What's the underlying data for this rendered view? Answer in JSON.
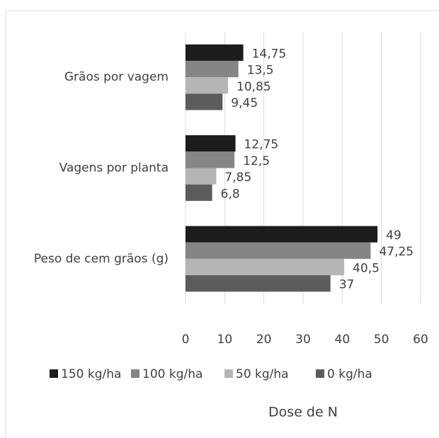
{
  "chart_data": {
    "type": "bar",
    "horizontal": true,
    "categories": [
      "Grãos por vagem",
      "Vagens por planta",
      "Peso de cem grãos (g)"
    ],
    "series": [
      {
        "name": "150 kg/ha",
        "color": "#1c1c1c",
        "values": [
          14.75,
          12.75,
          49
        ],
        "value_labels": [
          "14,75",
          "12,75",
          "49"
        ]
      },
      {
        "name": "100 kg/ha",
        "color": "#858585",
        "values": [
          13.5,
          12.5,
          47.25
        ],
        "value_labels": [
          "13,5",
          "12,5",
          "47,25"
        ]
      },
      {
        "name": "50 kg/ha",
        "color": "#b5b5b5",
        "values": [
          10.85,
          7.85,
          40.5
        ],
        "value_labels": [
          "10,85",
          "7,85",
          "40,5"
        ]
      },
      {
        "name": "0 kg/ha",
        "color": "#5c5c5c",
        "values": [
          9.45,
          6.8,
          37
        ],
        "value_labels": [
          "9,45",
          "6,8",
          "37"
        ]
      }
    ],
    "xlabel": "Dose de N",
    "xlim": [
      0,
      60
    ],
    "xticks": [
      0,
      10,
      20,
      30,
      40,
      50,
      60
    ],
    "grid": true,
    "legend": "bottom"
  }
}
